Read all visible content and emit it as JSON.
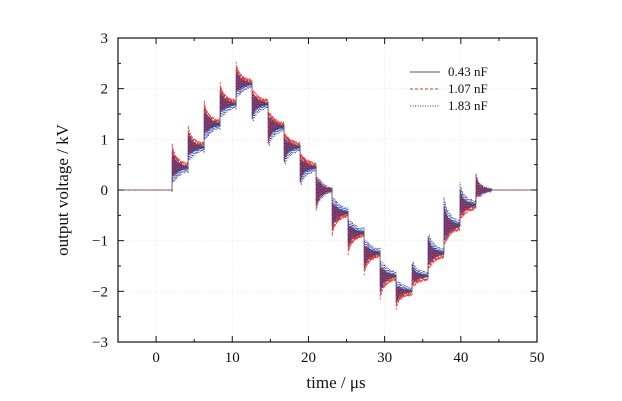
{
  "chart_data": {
    "type": "line",
    "xlabel": "time / μs",
    "ylabel": "output voltage / kV",
    "xlim": [
      -5,
      50
    ],
    "ylim": [
      -3,
      3
    ],
    "x_ticks": [
      "0",
      "10",
      "20",
      "30",
      "40",
      "50"
    ],
    "y_ticks": [
      "3",
      "2",
      "1",
      "0",
      "−1",
      "−2",
      "−3"
    ],
    "grid": true,
    "legend_position": "top-right",
    "series": [
      {
        "name": "0.43 nF",
        "color": "#555555",
        "style": "solid"
      },
      {
        "name": "1.07 nF",
        "color": "#e8302a",
        "style": "dashed"
      },
      {
        "name": "1.83 nF",
        "color": "#2a3aa8",
        "style": "dotted"
      }
    ],
    "steps": {
      "step_interval_us": 2.1,
      "levels_kV": [
        0,
        0.45,
        0.85,
        1.3,
        1.7,
        2.1,
        1.7,
        1.25,
        0.85,
        0.45,
        0,
        -0.45,
        -0.85,
        -1.25,
        -1.7,
        -2.0,
        -1.7,
        -1.25,
        -0.7,
        -0.3,
        0
      ],
      "start_us": 0,
      "end_us": 42
    }
  }
}
